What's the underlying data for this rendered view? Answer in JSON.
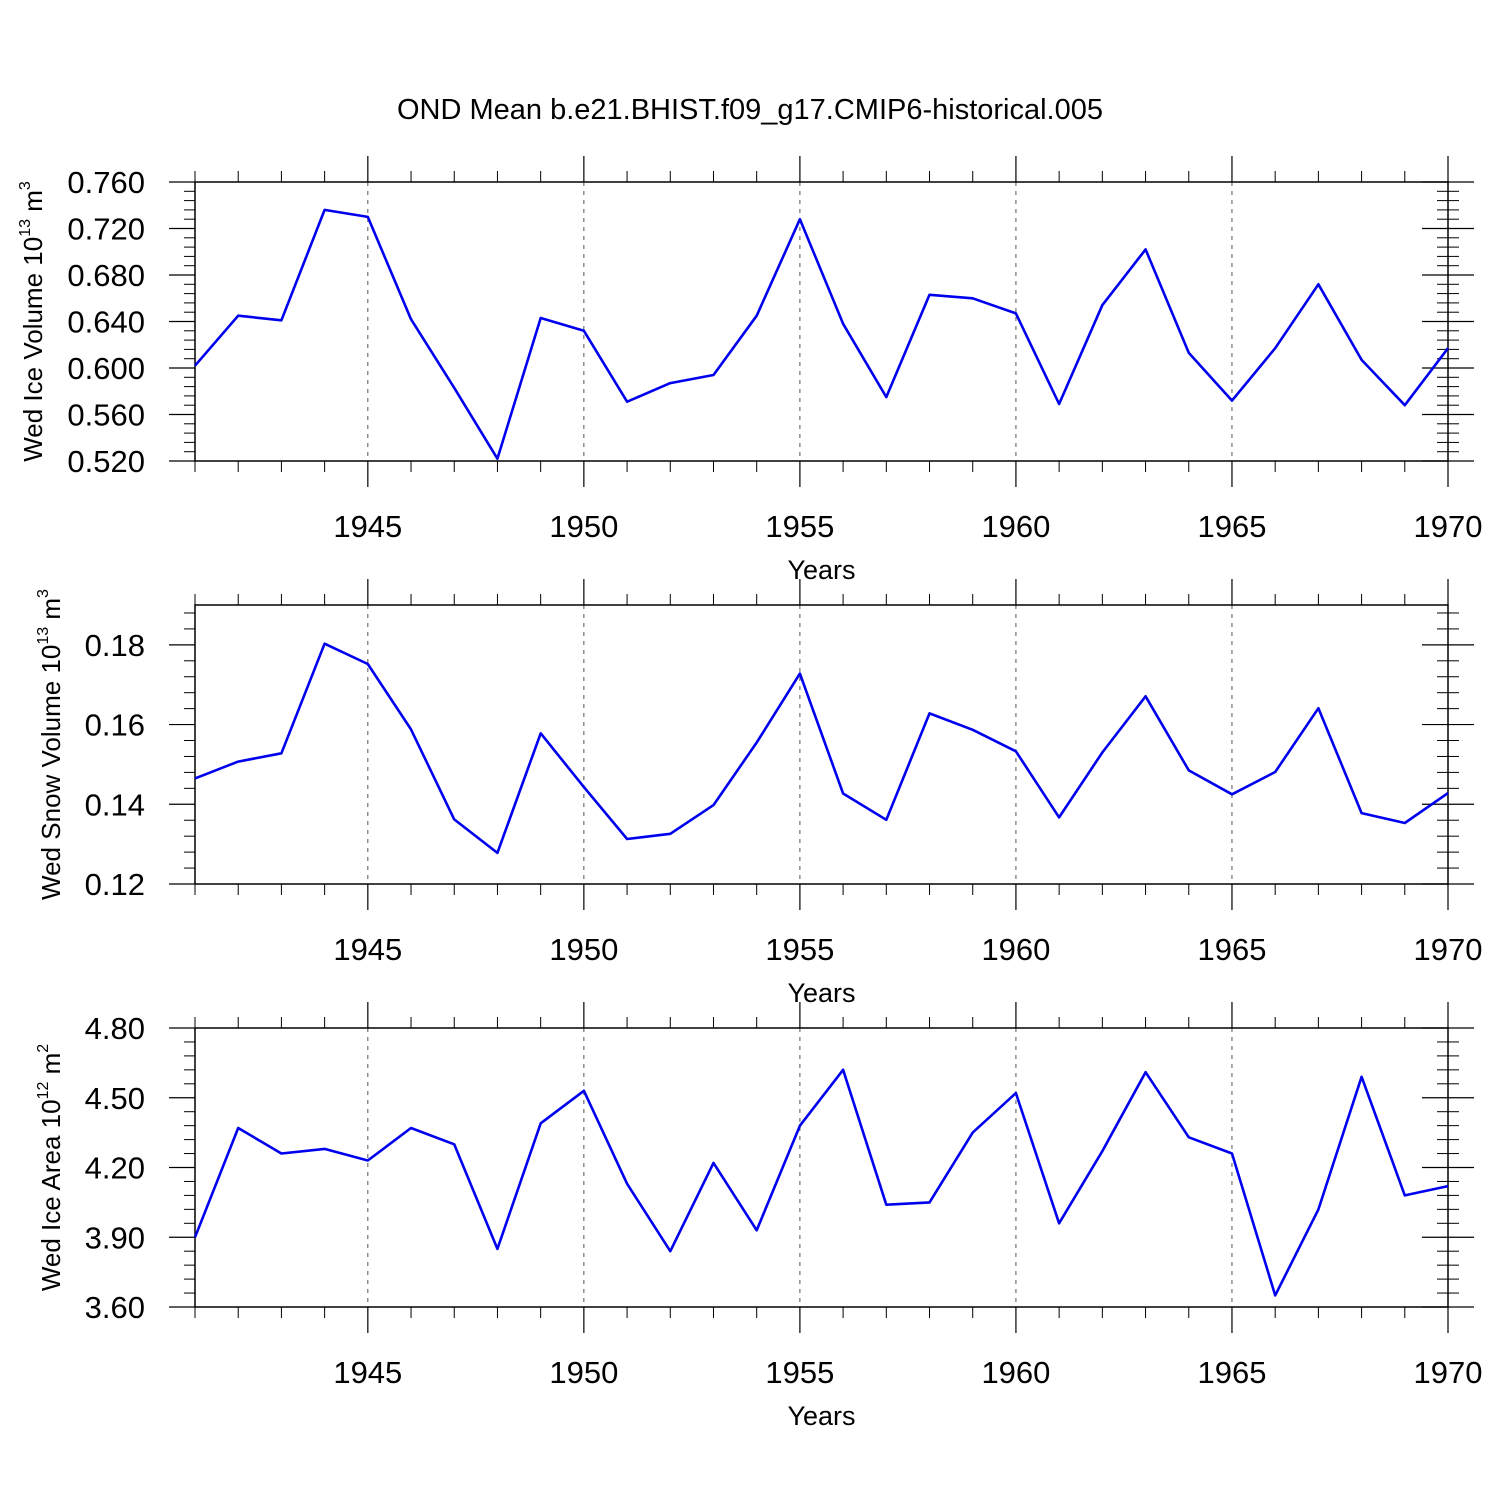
{
  "title": "OND Mean b.e21.BHIST.f09_g17.CMIP6-historical.005",
  "colors": {
    "line": "#0000ee",
    "axis": "#000000",
    "grid": "#555555"
  },
  "chart_data": [
    {
      "type": "line",
      "ylabel": {
        "text": "Wed Ice Volume 10",
        "exp": "13",
        "unit": " m",
        "unit_exp": "3"
      },
      "xlabel": "Years",
      "xlim": [
        1941,
        1970
      ],
      "ylim": [
        0.52,
        0.76
      ],
      "yticks": [
        0.52,
        0.56,
        0.6,
        0.64,
        0.68,
        0.72,
        0.76
      ],
      "ytick_labels": [
        "0.520",
        "0.560",
        "0.600",
        "0.640",
        "0.680",
        "0.720",
        "0.760"
      ],
      "xticks": [
        1945,
        1950,
        1955,
        1960,
        1965,
        1970
      ],
      "xtick_labels": [
        "1945",
        "1950",
        "1955",
        "1960",
        "1965",
        "1970"
      ],
      "grid": "vertical dashed at major x ticks",
      "series": [
        {
          "name": "Wed Ice Volume",
          "x": [
            1941,
            1942,
            1943,
            1944,
            1945,
            1946,
            1947,
            1948,
            1949,
            1950,
            1951,
            1952,
            1953,
            1954,
            1955,
            1956,
            1957,
            1958,
            1959,
            1960,
            1961,
            1962,
            1963,
            1964,
            1965,
            1966,
            1967,
            1968,
            1969,
            1970
          ],
          "values": [
            0.602,
            0.645,
            0.641,
            0.736,
            0.73,
            0.642,
            0.583,
            0.522,
            0.643,
            0.632,
            0.571,
            0.587,
            0.594,
            0.645,
            0.728,
            0.638,
            0.575,
            0.663,
            0.66,
            0.647,
            0.569,
            0.654,
            0.702,
            0.613,
            0.572,
            0.617,
            0.672,
            0.607,
            0.568,
            0.617
          ]
        }
      ]
    },
    {
      "type": "line",
      "ylabel": {
        "text": "Wed Snow Volume 10",
        "exp": "13",
        "unit": " m",
        "unit_exp": "3"
      },
      "xlabel": "Years",
      "xlim": [
        1941,
        1970
      ],
      "ylim": [
        0.12,
        0.19
      ],
      "yticks": [
        0.12,
        0.14,
        0.16,
        0.18
      ],
      "ytick_labels": [
        "0.12",
        "0.14",
        "0.16",
        "0.18"
      ],
      "xticks": [
        1945,
        1950,
        1955,
        1960,
        1965,
        1970
      ],
      "xtick_labels": [
        "1945",
        "1950",
        "1955",
        "1960",
        "1965",
        "1970"
      ],
      "grid": "vertical dashed at major x ticks",
      "series": [
        {
          "name": "Wed Snow Volume",
          "x": [
            1941,
            1942,
            1943,
            1944,
            1945,
            1946,
            1947,
            1948,
            1949,
            1950,
            1951,
            1952,
            1953,
            1954,
            1955,
            1956,
            1957,
            1958,
            1959,
            1960,
            1961,
            1962,
            1963,
            1964,
            1965,
            1966,
            1967,
            1968,
            1969,
            1970
          ],
          "values": [
            0.1465,
            0.1507,
            0.1528,
            0.1803,
            0.1752,
            0.1588,
            0.1362,
            0.1278,
            0.1578,
            0.1443,
            0.1313,
            0.1326,
            0.1398,
            0.1555,
            0.1728,
            0.1427,
            0.1361,
            0.1628,
            0.1587,
            0.1533,
            0.1367,
            0.153,
            0.1671,
            0.1485,
            0.1425,
            0.1481,
            0.1641,
            0.1378,
            0.1353,
            0.1428
          ]
        }
      ]
    },
    {
      "type": "line",
      "ylabel": {
        "text": "Wed Ice Area 10",
        "exp": "12",
        "unit": " m",
        "unit_exp": "2"
      },
      "xlabel": "Years",
      "xlim": [
        1941,
        1970
      ],
      "ylim": [
        3.6,
        4.8
      ],
      "yticks": [
        3.6,
        3.9,
        4.2,
        4.5,
        4.8
      ],
      "ytick_labels": [
        "3.60",
        "3.90",
        "4.20",
        "4.50",
        "4.80"
      ],
      "xticks": [
        1945,
        1950,
        1955,
        1960,
        1965,
        1970
      ],
      "xtick_labels": [
        "1945",
        "1950",
        "1955",
        "1960",
        "1965",
        "1970"
      ],
      "grid": "vertical dashed at major x ticks",
      "series": [
        {
          "name": "Wed Ice Area",
          "x": [
            1941,
            1942,
            1943,
            1944,
            1945,
            1946,
            1947,
            1948,
            1949,
            1950,
            1951,
            1952,
            1953,
            1954,
            1955,
            1956,
            1957,
            1958,
            1959,
            1960,
            1961,
            1962,
            1963,
            1964,
            1965,
            1966,
            1967,
            1968,
            1969,
            1970
          ],
          "values": [
            3.9,
            4.37,
            4.26,
            4.28,
            4.23,
            4.37,
            4.3,
            3.85,
            4.39,
            4.53,
            4.13,
            3.84,
            4.22,
            3.93,
            4.38,
            4.62,
            4.04,
            4.05,
            4.35,
            4.52,
            3.96,
            4.27,
            4.61,
            4.33,
            4.26,
            3.65,
            4.02,
            4.59,
            4.08,
            4.12
          ]
        }
      ]
    }
  ]
}
